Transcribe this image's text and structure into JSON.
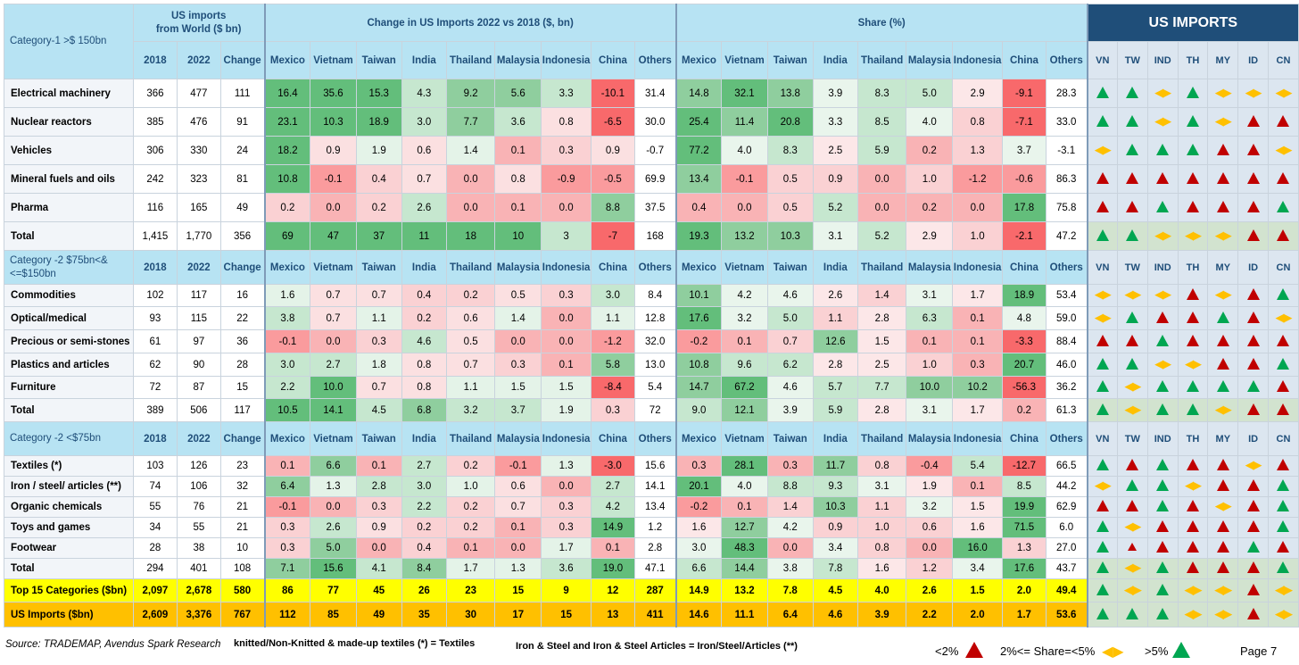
{
  "header": {
    "category_1": "Category-1\n>$ 150bn",
    "us_imports_world": "US imports\nfrom World ($ bn)",
    "change_title": "Change in US Imports  2022 vs 2018 ($, bn)",
    "share_title": "Share (%)",
    "us_imports_title": "US IMPORTS",
    "year_cols": [
      "2018",
      "2022",
      "Change"
    ],
    "countries": [
      "Mexico",
      "Vietnam",
      "Taiwan",
      "India",
      "Thailand",
      "Malaysia",
      "Indonesia",
      "China",
      "Others"
    ],
    "arrow_cols": [
      "VN",
      "TW",
      "IND",
      "TH",
      "MY",
      "ID",
      "CN"
    ]
  },
  "colors": {
    "green": "#00a651",
    "red": "#c00000",
    "amber": "#ffc000",
    "header_blue": "#b7e3f3",
    "title_navy": "#1f4e79",
    "yellow": "#ffff00",
    "orange": "#ffc000"
  },
  "sections": [
    {
      "title": "Category-1\n>$ 150bn",
      "rows": [
        {
          "name": "Electrical machinery",
          "y2018": "366",
          "y2022": "477",
          "chg": "111",
          "change": [
            "16.4",
            "35.6",
            "15.3",
            "4.3",
            "9.2",
            "5.6",
            "3.3",
            "-10.1",
            "31.4"
          ],
          "share": [
            "14.8",
            "32.1",
            "13.8",
            "3.9",
            "8.3",
            "5.0",
            "2.9",
            "-9.1",
            "28.3"
          ],
          "arrows": [
            "up",
            "up",
            "lr",
            "up",
            "lr",
            "lr",
            "lr"
          ]
        },
        {
          "name": "Nuclear reactors",
          "y2018": "385",
          "y2022": "476",
          "chg": "91",
          "change": [
            "23.1",
            "10.3",
            "18.9",
            "3.0",
            "7.7",
            "3.6",
            "0.8",
            "-6.5",
            "30.0"
          ],
          "share": [
            "25.4",
            "11.4",
            "20.8",
            "3.3",
            "8.5",
            "4.0",
            "0.8",
            "-7.1",
            "33.0"
          ],
          "arrows": [
            "up",
            "up",
            "lr",
            "up",
            "lr",
            "down",
            "down"
          ]
        },
        {
          "name": "Vehicles",
          "y2018": "306",
          "y2022": "330",
          "chg": "24",
          "change": [
            "18.2",
            "0.9",
            "1.9",
            "0.6",
            "1.4",
            "0.1",
            "0.3",
            "0.9",
            "-0.7"
          ],
          "share": [
            "77.2",
            "4.0",
            "8.3",
            "2.5",
            "5.9",
            "0.2",
            "1.3",
            "3.7",
            "-3.1"
          ],
          "arrows": [
            "lr",
            "up",
            "up",
            "up",
            "down",
            "down",
            "lr"
          ]
        },
        {
          "name": "Mineral fuels and oils",
          "y2018": "242",
          "y2022": "323",
          "chg": "81",
          "change": [
            "10.8",
            "-0.1",
            "0.4",
            "0.7",
            "0.0",
            "0.8",
            "-0.9",
            "-0.5",
            "69.9"
          ],
          "share": [
            "13.4",
            "-0.1",
            "0.5",
            "0.9",
            "0.0",
            "1.0",
            "-1.2",
            "-0.6",
            "86.3"
          ],
          "arrows": [
            "down",
            "down",
            "down",
            "down",
            "down",
            "down",
            "down"
          ]
        },
        {
          "name": "Pharma",
          "y2018": "116",
          "y2022": "165",
          "chg": "49",
          "change": [
            "0.2",
            "0.0",
            "0.2",
            "2.6",
            "0.0",
            "0.1",
            "0.0",
            "8.8",
            "37.5"
          ],
          "share": [
            "0.4",
            "0.0",
            "0.5",
            "5.2",
            "0.0",
            "0.2",
            "0.0",
            "17.8",
            "75.8"
          ],
          "arrows": [
            "down",
            "down",
            "up",
            "down",
            "down",
            "down",
            "up"
          ]
        },
        {
          "name": "Total",
          "total": true,
          "y2018": "1,415",
          "y2022": "1,770",
          "chg": "356",
          "change": [
            "69",
            "47",
            "37",
            "11",
            "18",
            "10",
            "3",
            "-7",
            "168"
          ],
          "share": [
            "19.3",
            "13.2",
            "10.3",
            "3.1",
            "5.2",
            "2.9",
            "1.0",
            "-2.1",
            "47.2"
          ],
          "arrows": [
            "up",
            "up",
            "lr",
            "lr",
            "lr",
            "down",
            "down"
          ]
        }
      ]
    },
    {
      "title": "Category -2\n$75bn<&<=$150bn",
      "rows": [
        {
          "name": "Commodities",
          "y2018": "102",
          "y2022": "117",
          "chg": "16",
          "change": [
            "1.6",
            "0.7",
            "0.7",
            "0.4",
            "0.2",
            "0.5",
            "0.3",
            "3.0",
            "8.4"
          ],
          "share": [
            "10.1",
            "4.2",
            "4.6",
            "2.6",
            "1.4",
            "3.1",
            "1.7",
            "18.9",
            "53.4"
          ],
          "arrows": [
            "lr",
            "lr",
            "lr",
            "down",
            "lr",
            "down",
            "up"
          ]
        },
        {
          "name": "Optical/medical",
          "y2018": "93",
          "y2022": "115",
          "chg": "22",
          "change": [
            "3.8",
            "0.7",
            "1.1",
            "0.2",
            "0.6",
            "1.4",
            "0.0",
            "1.1",
            "12.8"
          ],
          "share": [
            "17.6",
            "3.2",
            "5.0",
            "1.1",
            "2.8",
            "6.3",
            "0.1",
            "4.8",
            "59.0"
          ],
          "arrows": [
            "lr",
            "up",
            "down",
            "down",
            "up",
            "down",
            "lr"
          ]
        },
        {
          "name": "Precious or semi-stones",
          "y2018": "61",
          "y2022": "97",
          "chg": "36",
          "change": [
            "-0.1",
            "0.0",
            "0.3",
            "4.6",
            "0.5",
            "0.0",
            "0.0",
            "-1.2",
            "32.0"
          ],
          "share": [
            "-0.2",
            "0.1",
            "0.7",
            "12.6",
            "1.5",
            "0.1",
            "0.1",
            "-3.3",
            "88.4"
          ],
          "arrows": [
            "down",
            "down",
            "up",
            "down",
            "down",
            "down",
            "down"
          ]
        },
        {
          "name": "Plastics and articles",
          "y2018": "62",
          "y2022": "90",
          "chg": "28",
          "change": [
            "3.0",
            "2.7",
            "1.8",
            "0.8",
            "0.7",
            "0.3",
            "0.1",
            "5.8",
            "13.0"
          ],
          "share": [
            "10.8",
            "9.6",
            "6.2",
            "2.8",
            "2.5",
            "1.0",
            "0.3",
            "20.7",
            "46.0"
          ],
          "arrows": [
            "up",
            "up",
            "lr",
            "lr",
            "down",
            "down",
            "up"
          ]
        },
        {
          "name": "Furniture",
          "y2018": "72",
          "y2022": "87",
          "chg": "15",
          "change": [
            "2.2",
            "10.0",
            "0.7",
            "0.8",
            "1.1",
            "1.5",
            "1.5",
            "-8.4",
            "5.4"
          ],
          "share": [
            "14.7",
            "67.2",
            "4.6",
            "5.7",
            "7.7",
            "10.0",
            "10.2",
            "-56.3",
            "36.2"
          ],
          "arrows": [
            "up",
            "lr",
            "up",
            "up",
            "up",
            "up",
            "down"
          ]
        },
        {
          "name": "Total",
          "total": true,
          "y2018": "389",
          "y2022": "506",
          "chg": "117",
          "change": [
            "10.5",
            "14.1",
            "4.5",
            "6.8",
            "3.2",
            "3.7",
            "1.9",
            "0.3",
            "72"
          ],
          "share": [
            "9.0",
            "12.1",
            "3.9",
            "5.9",
            "2.8",
            "3.1",
            "1.7",
            "0.2",
            "61.3"
          ],
          "arrows": [
            "up",
            "lr",
            "up",
            "up",
            "lr",
            "down",
            "down"
          ]
        }
      ]
    },
    {
      "title": "Category -2\n<$75bn",
      "rows": [
        {
          "name": "Textiles (*)",
          "y2018": "103",
          "y2022": "126",
          "chg": "23",
          "change": [
            "0.1",
            "6.6",
            "0.1",
            "2.7",
            "0.2",
            "-0.1",
            "1.3",
            "-3.0",
            "15.6"
          ],
          "share": [
            "0.3",
            "28.1",
            "0.3",
            "11.7",
            "0.8",
            "-0.4",
            "5.4",
            "-12.7",
            "66.5"
          ],
          "arrows": [
            "up",
            "down",
            "up",
            "down",
            "down",
            "lr",
            "down"
          ]
        },
        {
          "name": "Iron / steel/ articles (**)",
          "y2018": "74",
          "y2022": "106",
          "chg": "32",
          "change": [
            "6.4",
            "1.3",
            "2.8",
            "3.0",
            "1.0",
            "0.6",
            "0.0",
            "2.7",
            "14.1"
          ],
          "share": [
            "20.1",
            "4.0",
            "8.8",
            "9.3",
            "3.1",
            "1.9",
            "0.1",
            "8.5",
            "44.2"
          ],
          "arrows": [
            "lr",
            "up",
            "up",
            "lr",
            "down",
            "down",
            "up"
          ]
        },
        {
          "name": "Organic chemicals",
          "y2018": "55",
          "y2022": "76",
          "chg": "21",
          "change": [
            "-0.1",
            "0.0",
            "0.3",
            "2.2",
            "0.2",
            "0.7",
            "0.3",
            "4.2",
            "13.4"
          ],
          "share": [
            "-0.2",
            "0.1",
            "1.4",
            "10.3",
            "1.1",
            "3.2",
            "1.5",
            "19.9",
            "62.9"
          ],
          "arrows": [
            "down",
            "down",
            "up",
            "down",
            "lr",
            "down",
            "up"
          ]
        },
        {
          "name": "Toys and games",
          "y2018": "34",
          "y2022": "55",
          "chg": "21",
          "change": [
            "0.3",
            "2.6",
            "0.9",
            "0.2",
            "0.2",
            "0.1",
            "0.3",
            "14.9",
            "1.2"
          ],
          "share": [
            "1.6",
            "12.7",
            "4.2",
            "0.9",
            "1.0",
            "0.6",
            "1.6",
            "71.5",
            "6.0"
          ],
          "arrows": [
            "up",
            "lr",
            "down",
            "down",
            "down",
            "down",
            "up"
          ]
        },
        {
          "name": "Footwear",
          "y2018": "28",
          "y2022": "38",
          "chg": "10",
          "change": [
            "0.3",
            "5.0",
            "0.0",
            "0.4",
            "0.1",
            "0.0",
            "1.7",
            "0.1",
            "2.8"
          ],
          "share": [
            "3.0",
            "48.3",
            "0.0",
            "3.4",
            "0.8",
            "0.0",
            "16.0",
            "1.3",
            "27.0"
          ],
          "arrows": [
            "up",
            "downsm",
            "down",
            "down",
            "down",
            "up",
            "down"
          ]
        },
        {
          "name": "Total",
          "total": true,
          "y2018": "294",
          "y2022": "401",
          "chg": "108",
          "change": [
            "7.1",
            "15.6",
            "4.1",
            "8.4",
            "1.7",
            "1.3",
            "3.6",
            "19.0",
            "47.1"
          ],
          "share": [
            "6.6",
            "14.4",
            "3.8",
            "7.8",
            "1.6",
            "1.2",
            "3.4",
            "17.6",
            "43.7"
          ],
          "arrows": [
            "up",
            "lr",
            "up",
            "down",
            "down",
            "down",
            "up"
          ]
        }
      ]
    }
  ],
  "top15": {
    "name": "Top 15 Categories ($bn)",
    "y2018": "2,097",
    "y2022": "2,678",
    "chg": "580",
    "change": [
      "86",
      "77",
      "45",
      "26",
      "23",
      "15",
      "9",
      "12",
      "287"
    ],
    "share": [
      "14.9",
      "13.2",
      "7.8",
      "4.5",
      "4.0",
      "2.6",
      "1.5",
      "2.0",
      "49.4"
    ],
    "arrows": [
      "up",
      "lr",
      "up",
      "lr",
      "lr",
      "down",
      "lr"
    ]
  },
  "usrow": {
    "name": "US Imports ($bn)",
    "y2018": "2,609",
    "y2022": "3,376",
    "chg": "767",
    "change": [
      "112",
      "85",
      "49",
      "35",
      "30",
      "17",
      "15",
      "13",
      "411"
    ],
    "share": [
      "14.6",
      "11.1",
      "6.4",
      "4.6",
      "3.9",
      "2.2",
      "2.0",
      "1.7",
      "53.6"
    ],
    "arrows": [
      "up",
      "up",
      "up",
      "lr",
      "lr",
      "down",
      "lr"
    ]
  },
  "footer": {
    "source": "Source: TRADEMAP, Avendus Spark Research",
    "note1": "knitted/Non-Knitted  & made-up textiles (*) = Textiles",
    "note2": "Iron & Steel and Iron & Steel Articles = Iron/Steel/Articles (**)",
    "legend_lt2": "<2%",
    "legend_mid": "2%<= Share=<5%",
    "legend_gt5": ">5%",
    "page": "Page 7"
  }
}
